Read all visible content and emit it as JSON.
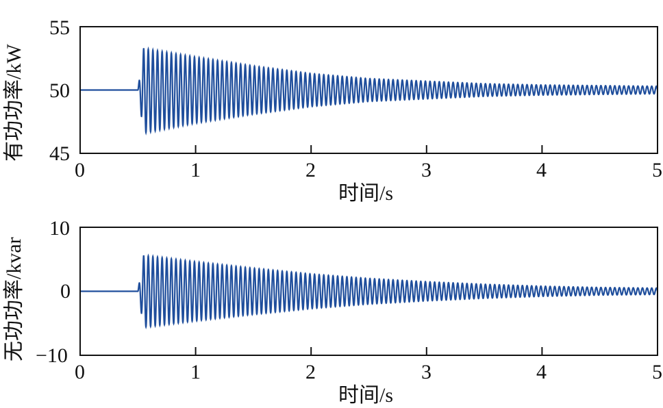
{
  "chart_data": [
    {
      "type": "line",
      "title": "",
      "xlabel": "时间/s",
      "ylabel": "有功功率/kW",
      "xlim": [
        0,
        5
      ],
      "ylim": [
        45,
        55
      ],
      "xticks": [
        "0",
        "1",
        "2",
        "3",
        "4",
        "5"
      ],
      "yticks": [
        "45",
        "50",
        "55"
      ],
      "grid": false,
      "legend": null,
      "series": [
        {
          "name": "有功功率",
          "color": "#1f4e9c",
          "description": "Constant at 50 kW until t≈0.5 s, then damped oscillation (~25 Hz) centered at 50 kW",
          "x": [
            0,
            0.5,
            0.55,
            0.6,
            1.0,
            1.5,
            2.0,
            2.5,
            3.0,
            3.5,
            4.0,
            4.5,
            5.0
          ],
          "upper_envelope": [
            50,
            50,
            53.3,
            53.2,
            52.6,
            51.9,
            51.3,
            50.9,
            50.7,
            50.5,
            50.4,
            50.35,
            50.3
          ],
          "lower_envelope": [
            50,
            50,
            46.6,
            46.7,
            47.4,
            48.1,
            48.7,
            49.1,
            49.3,
            49.5,
            49.6,
            49.65,
            49.7
          ]
        }
      ]
    },
    {
      "type": "line",
      "title": "",
      "xlabel": "时间/s",
      "ylabel": "无功功率/kvar",
      "xlim": [
        0,
        5
      ],
      "ylim": [
        -10,
        10
      ],
      "xticks": [
        "0",
        "1",
        "2",
        "3",
        "4",
        "5"
      ],
      "yticks": [
        "−10",
        "0",
        "10"
      ],
      "grid": false,
      "legend": null,
      "series": [
        {
          "name": "无功功率",
          "color": "#1f4e9c",
          "description": "Zero until t≈0.5 s, then damped oscillation (~25 Hz) centered at 0 kvar",
          "x": [
            0,
            0.5,
            0.55,
            0.6,
            1.0,
            1.5,
            2.0,
            2.5,
            3.0,
            3.5,
            4.0,
            4.5,
            5.0
          ],
          "upper_envelope": [
            0,
            0,
            5.6,
            5.5,
            4.6,
            3.6,
            2.7,
            2.0,
            1.5,
            1.1,
            0.8,
            0.6,
            0.5
          ],
          "lower_envelope": [
            0,
            0,
            -5.6,
            -5.5,
            -4.6,
            -3.6,
            -2.7,
            -2.0,
            -1.5,
            -1.1,
            -0.8,
            -0.6,
            -0.5
          ]
        }
      ]
    }
  ],
  "plots": {
    "top": {
      "ylabel": "有功功率/kW",
      "xlabel": "时间/s",
      "yticks": [
        "55",
        "50",
        "45"
      ],
      "xticks": [
        "0",
        "1",
        "2",
        "3",
        "4",
        "5"
      ]
    },
    "bottom": {
      "ylabel": "无功功率/kvar",
      "xlabel": "时间/s",
      "yticks": [
        "10",
        "0",
        "−10"
      ],
      "xticks": [
        "0",
        "1",
        "2",
        "3",
        "4",
        "5"
      ]
    }
  },
  "colors": {
    "line": "#1f4e9c",
    "axis": "#111111"
  }
}
